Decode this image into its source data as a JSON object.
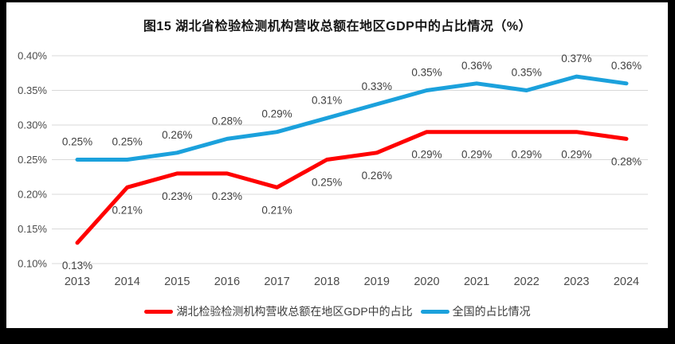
{
  "figure": {
    "title": "图15  湖北省检验检测机构营收总额在地区GDP中的占比情况（%）"
  },
  "chart_data": {
    "type": "line",
    "title": "图15  湖北省检验检测机构营收总额在地区GDP中的占比情况（%）",
    "categories": [
      "2013",
      "2014",
      "2015",
      "2016",
      "2017",
      "2018",
      "2019",
      "2020",
      "2021",
      "2022",
      "2023",
      "2024"
    ],
    "series": [
      {
        "id": "national",
        "name": "全国的占比情况",
        "color": "#1BA1DC",
        "label_position": "above",
        "values": [
          0.25,
          0.25,
          0.26,
          0.28,
          0.29,
          0.31,
          0.33,
          0.35,
          0.36,
          0.35,
          0.37,
          0.36
        ],
        "labels": [
          "0.25%",
          "0.25%",
          "0.26%",
          "0.28%",
          "0.29%",
          "0.31%",
          "0.33%",
          "0.35%",
          "0.36%",
          "0.35%",
          "0.37%",
          "0.36%"
        ]
      },
      {
        "id": "hubei",
        "name": "湖北检验检测机构营收总额在地区GDP中的占比",
        "color": "#FF0000",
        "label_position": "below",
        "values": [
          0.13,
          0.21,
          0.23,
          0.23,
          0.21,
          0.25,
          0.26,
          0.29,
          0.29,
          0.29,
          0.29,
          0.28
        ],
        "labels": [
          "0.13%",
          "0.21%",
          "0.23%",
          "0.23%",
          "0.21%",
          "0.25%",
          "0.26%",
          "0.29%",
          "0.29%",
          "0.29%",
          "0.29%",
          "0.28%"
        ]
      }
    ],
    "xlabel": "",
    "ylabel": "",
    "ylim": [
      0.1,
      0.4
    ],
    "ytick_step": 0.05,
    "yticks": [
      "0.10%",
      "0.15%",
      "0.20%",
      "0.25%",
      "0.30%",
      "0.35%",
      "0.40%"
    ],
    "grid": "horizontal",
    "legend_position": "bottom",
    "colors": {
      "gridline": "#D9D9D9",
      "tick_label": "#4A4A4A",
      "data_label": "#3F3F3F",
      "title": "#161616",
      "background": "#FFFFFF",
      "frame": "#000000"
    }
  }
}
